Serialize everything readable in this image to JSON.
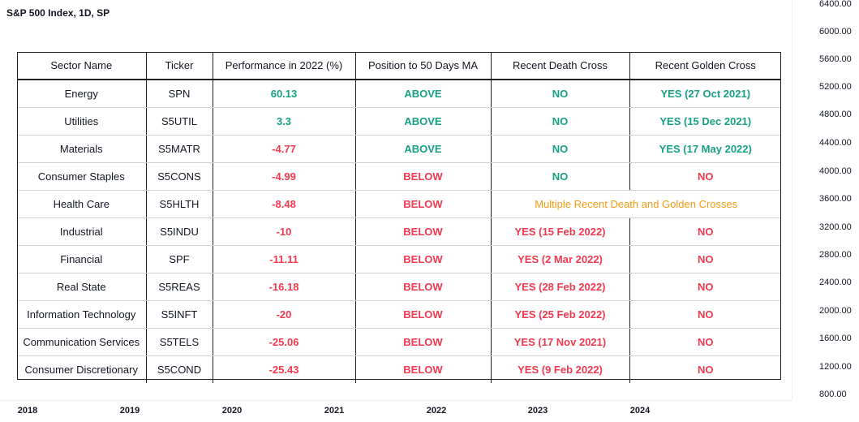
{
  "chart_title": "S&P 500 Index, 1D, SP",
  "price_axis": [
    "6400.00",
    "6000.00",
    "5600.00",
    "5200.00",
    "4800.00",
    "4400.00",
    "4000.00",
    "3600.00",
    "3200.00",
    "2800.00",
    "2400.00",
    "2000.00",
    "1600.00",
    "1200.00",
    "800.00"
  ],
  "time_axis": [
    "2018",
    "2019",
    "2020",
    "2021",
    "2022",
    "2023",
    "2024"
  ],
  "colors": {
    "positive": "#17a085",
    "negative": "#f2394f",
    "mixed": "#f39c12"
  },
  "table": {
    "headers": [
      "Sector Name",
      "Ticker",
      "Performance in 2022 (%)",
      "Position to 50 Days MA",
      "Recent Death Cross",
      "Recent Golden Cross"
    ],
    "rows": [
      {
        "sector": "Energy",
        "ticker": "SPN",
        "performance": "60.13",
        "position": "ABOVE",
        "death_cross": "NO",
        "golden_cross": "YES (27 Oct 2021)"
      },
      {
        "sector": "Utilities",
        "ticker": "S5UTIL",
        "performance": "3.3",
        "position": "ABOVE",
        "death_cross": "NO",
        "golden_cross": "YES (15 Dec 2021)"
      },
      {
        "sector": "Materials",
        "ticker": "S5MATR",
        "performance": "-4.77",
        "position": "ABOVE",
        "death_cross": "NO",
        "golden_cross": "YES (17 May 2022)"
      },
      {
        "sector": "Consumer Staples",
        "ticker": "S5CONS",
        "performance": "-4.99",
        "position": "BELOW",
        "death_cross": "NO",
        "golden_cross": "NO"
      },
      {
        "sector": "Health Care",
        "ticker": "S5HLTH",
        "performance": "-8.48",
        "position": "BELOW",
        "crosses_note": "Multiple Recent Death and Golden Crosses"
      },
      {
        "sector": "Industrial",
        "ticker": "S5INDU",
        "performance": "-10",
        "position": "BELOW",
        "death_cross": "YES (15 Feb 2022)",
        "golden_cross": "NO"
      },
      {
        "sector": "Financial",
        "ticker": "SPF",
        "performance": "-11.11",
        "position": "BELOW",
        "death_cross": "YES (2 Mar 2022)",
        "golden_cross": "NO"
      },
      {
        "sector": "Real State",
        "ticker": "S5REAS",
        "performance": "-16.18",
        "position": "BELOW",
        "death_cross": "YES (28 Feb 2022)",
        "golden_cross": "NO"
      },
      {
        "sector": "Information Technology",
        "ticker": "S5INFT",
        "performance": "-20",
        "position": "BELOW",
        "death_cross": "YES (25 Feb 2022)",
        "golden_cross": "NO"
      },
      {
        "sector": "Communication Services",
        "ticker": "S5TELS",
        "performance": "-25.06",
        "position": "BELOW",
        "death_cross": "YES (17 Nov 2021)",
        "golden_cross": "NO"
      },
      {
        "sector": "Consumer Discretionary",
        "ticker": "S5COND",
        "performance": "-25.43",
        "position": "BELOW",
        "death_cross": "YES (9 Feb 2022)",
        "golden_cross": "NO"
      }
    ]
  }
}
